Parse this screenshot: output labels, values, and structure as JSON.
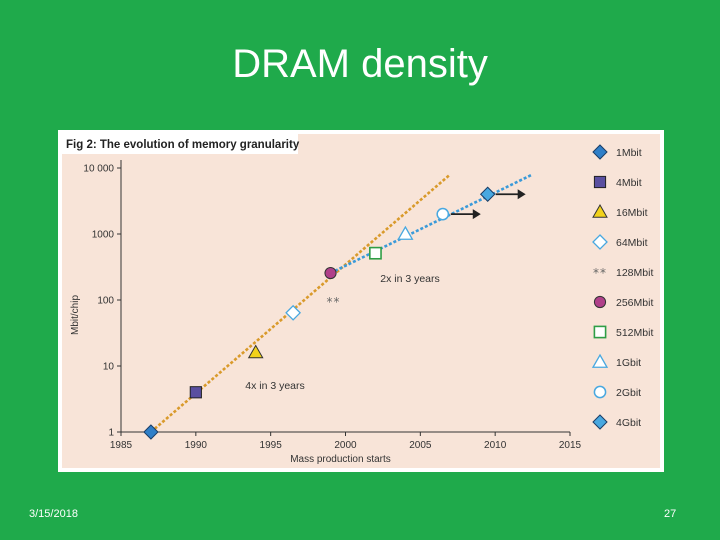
{
  "slide": {
    "title": "DRAM density",
    "date": "3/15/2018",
    "page_number": "27"
  },
  "colors": {
    "slide_background": "#1faa4b",
    "plot_background": "#f8e4d8",
    "trend_4x": "#d99a2b",
    "trend_2x": "#3a9ad9",
    "marker_blue": "#2f7fc8",
    "marker_purple": "#5a4fa0",
    "marker_yellow": "#f2d21b",
    "marker_magenta": "#b0408a",
    "marker_green": "#2f9e46",
    "marker_lightblue": "#48a8e0"
  },
  "chart_data": {
    "type": "scatter",
    "title": "Fig 2: The evolution of memory granularity",
    "xlabel": "Mass production starts",
    "ylabel": "Mbit/chip",
    "xlim": [
      1985,
      2015
    ],
    "ylim": [
      1,
      10000
    ],
    "yscale": "log",
    "x_ticks": [
      "1985",
      "1990",
      "1995",
      "2000",
      "2005",
      "2010",
      "2015"
    ],
    "y_ticks": [
      "1",
      "10",
      "100",
      "1000",
      "10 000"
    ],
    "legend_position": "right",
    "points": [
      {
        "name": "1Mbit",
        "x": 1987,
        "y": 1,
        "marker": "diamond",
        "fill": "#2f7fc8"
      },
      {
        "name": "4Mbit",
        "x": 1990,
        "y": 4,
        "marker": "square",
        "fill": "#5a4fa0"
      },
      {
        "name": "16Mbit",
        "x": 1994,
        "y": 16,
        "marker": "triangle",
        "fill": "#f2d21b"
      },
      {
        "name": "64Mbit",
        "x": 1996.5,
        "y": 64,
        "marker": "diamond-open",
        "fill": "#48a8e0"
      },
      {
        "name": "128Mbit",
        "x": 1999.2,
        "y": 128,
        "marker": "asterisk",
        "fill": "#666666"
      },
      {
        "name": "256Mbit",
        "x": 1999,
        "y": 256,
        "marker": "circle",
        "fill": "#b0408a"
      },
      {
        "name": "512Mbit",
        "x": 2002,
        "y": 512,
        "marker": "square-open",
        "fill": "#2f9e46"
      },
      {
        "name": "1Gbit",
        "x": 2004,
        "y": 1000,
        "marker": "triangle-open",
        "fill": "#48a8e0"
      },
      {
        "name": "2Gbit",
        "x": 2006.5,
        "y": 2000,
        "marker": "circle-open",
        "fill": "#48a8e0"
      },
      {
        "name": "4Gbit",
        "x": 2009.5,
        "y": 4000,
        "marker": "diamond",
        "fill": "#48a8e0"
      }
    ],
    "trend_lines": [
      {
        "label": "4x in 3 years",
        "color": "#d99a2b",
        "x": [
          1987,
          2007
        ],
        "y": [
          1,
          8000
        ]
      },
      {
        "label": "2x in 3 years",
        "color": "#3a9ad9",
        "x": [
          1999,
          2012.5
        ],
        "y": [
          256,
          8000
        ]
      }
    ],
    "arrows": [
      {
        "x": 2006.5,
        "y": 2000
      },
      {
        "x": 2009.5,
        "y": 4000
      }
    ],
    "annotations": [
      {
        "text": "4x in 3 years",
        "x": 1995,
        "y": 0.62
      },
      {
        "text": "2x in 3 years",
        "x": 2004.5,
        "y": 0.5
      }
    ]
  }
}
